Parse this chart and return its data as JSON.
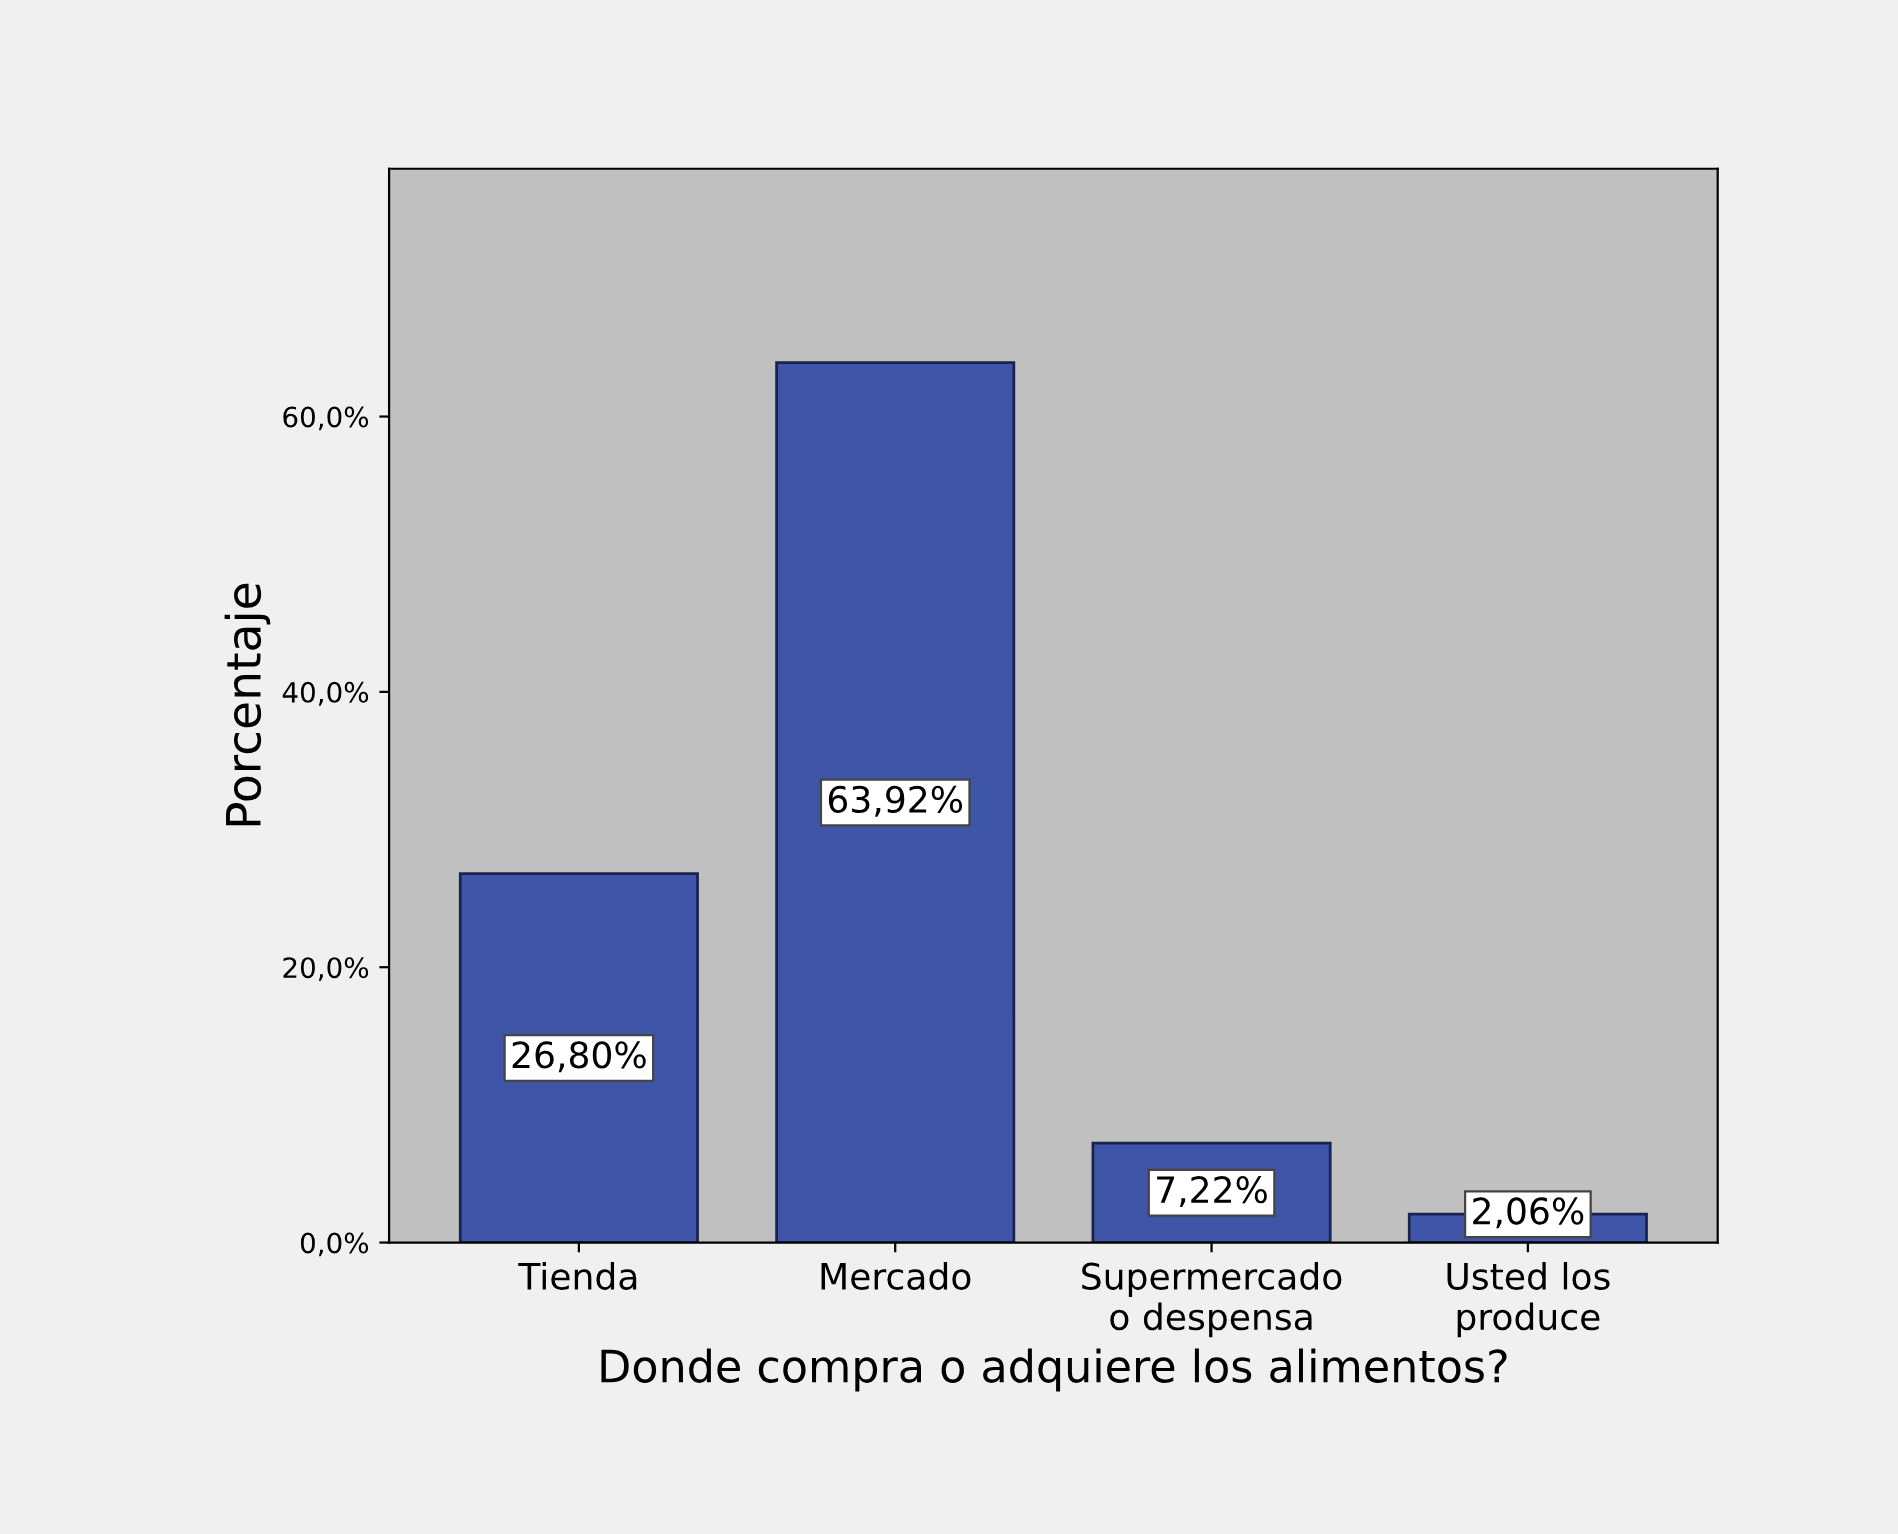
{
  "chart_data": {
    "type": "bar",
    "xlabel": "Donde compra o adquiere los alimentos?",
    "ylabel": "Porcentaje",
    "categories": [
      "Tienda",
      "Mercado",
      "Supermercado\no despensa",
      "Usted los\nproduce"
    ],
    "values": [
      26.8,
      63.92,
      7.22,
      2.06
    ],
    "value_labels": [
      "26,80%",
      "63,92%",
      "7,22%",
      "2,06%"
    ],
    "color": "#3f55a8",
    "ylim": [
      0,
      78
    ],
    "yticks": [
      {
        "value": 0,
        "label": "0,0%"
      },
      {
        "value": 20,
        "label": "20,0%"
      },
      {
        "value": 40,
        "label": "40,0%"
      },
      {
        "value": 60,
        "label": "60,0%"
      }
    ],
    "grid": false,
    "legend": false
  }
}
